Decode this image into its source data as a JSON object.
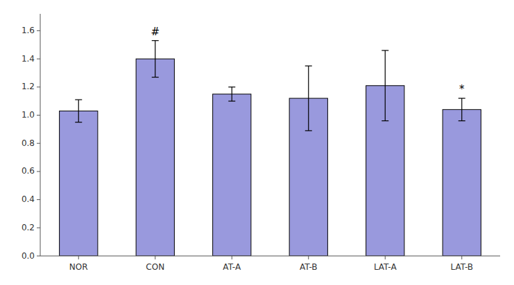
{
  "chart_data": {
    "type": "bar",
    "categories": [
      "NOR",
      "CON",
      "AT-A",
      "AT-B",
      "LAT-A",
      "LAT-B"
    ],
    "values": [
      1.03,
      1.4,
      1.15,
      1.12,
      1.21,
      1.04
    ],
    "errors": [
      0.08,
      0.13,
      0.05,
      0.23,
      0.25,
      0.08
    ],
    "color": "#9999dd",
    "ylim": [
      0.0,
      1.72
    ],
    "yticks": [
      {
        "value": 0.0,
        "label": "0.0"
      },
      0.2,
      0.4,
      0.6,
      0.8,
      {
        "value": 1.0,
        "label": "1.0"
      },
      1.2,
      1.4,
      1.6
    ],
    "annotations": [
      {
        "text": "#",
        "category": "CON"
      },
      {
        "text": "*",
        "category": "LAT-B"
      }
    ],
    "grid": false
  }
}
